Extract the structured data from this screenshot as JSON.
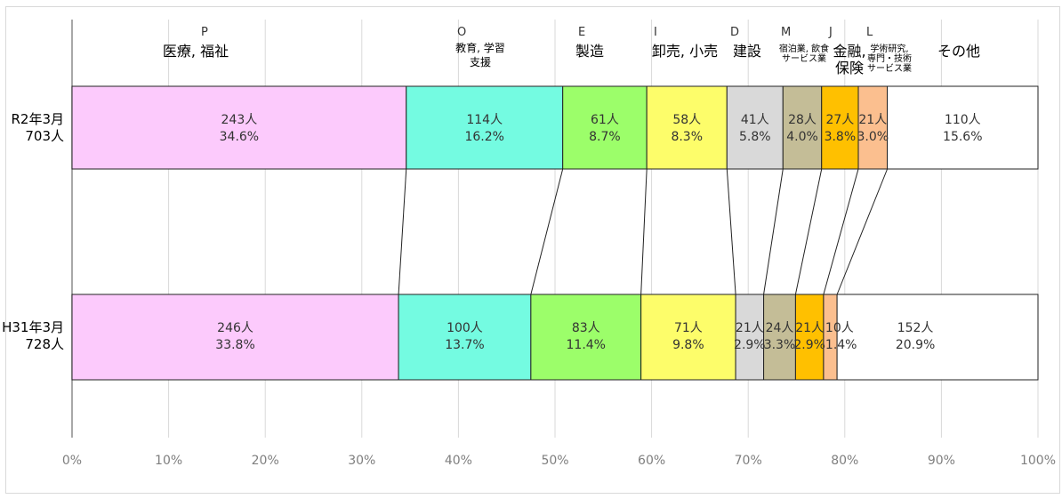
{
  "chart_data": {
    "type": "bar",
    "subtype": "stacked-100-percent-horizontal",
    "xlim": [
      0,
      100
    ],
    "x_tick_labels": [
      "0%",
      "10%",
      "20%",
      "30%",
      "40%",
      "50%",
      "60%",
      "70%",
      "80%",
      "90%",
      "100%"
    ],
    "grid": true,
    "categories": [
      {
        "line1": "R2年3月",
        "line2": "703人"
      },
      {
        "line1": "H31年3月",
        "line2": "728人"
      }
    ],
    "series": [
      {
        "code": "P",
        "name_lines": [
          "医療, 福祉"
        ],
        "color": "#fccafc",
        "rows": [
          {
            "count": "243人",
            "pct": "34.6%",
            "value": 34.6
          },
          {
            "count": "246人",
            "pct": "33.8%",
            "value": 33.8
          }
        ]
      },
      {
        "code": "O",
        "name_lines": [
          "教育, 学習",
          "支援"
        ],
        "color": "#74fbe1",
        "rows": [
          {
            "count": "114人",
            "pct": "16.2%",
            "value": 16.2
          },
          {
            "count": "100人",
            "pct": "13.7%",
            "value": 13.7
          }
        ]
      },
      {
        "code": "E",
        "name_lines": [
          "製造"
        ],
        "color": "#9cfe6a",
        "rows": [
          {
            "count": "61人",
            "pct": "8.7%",
            "value": 8.7
          },
          {
            "count": "83人",
            "pct": "11.4%",
            "value": 11.4
          }
        ]
      },
      {
        "code": "I",
        "name_lines": [
          "卸売, 小売"
        ],
        "color": "#fdfd6a",
        "rows": [
          {
            "count": "58人",
            "pct": "8.3%",
            "value": 8.3
          },
          {
            "count": "71人",
            "pct": "9.8%",
            "value": 9.8
          }
        ]
      },
      {
        "code": "D",
        "name_lines": [
          "建設"
        ],
        "color": "#d9d9d9",
        "rows": [
          {
            "count": "41人",
            "pct": "5.8%",
            "value": 5.8
          },
          {
            "count": "21人",
            "pct": "2.9%",
            "value": 2.9
          }
        ]
      },
      {
        "code": "M",
        "name_lines": [
          "宿泊業, 飲食",
          "サービス業"
        ],
        "color": "#c4bd97",
        "rows": [
          {
            "count": "28人",
            "pct": "4.0%",
            "value": 4.0
          },
          {
            "count": "24人",
            "pct": "3.3%",
            "value": 3.3
          }
        ]
      },
      {
        "code": "J",
        "name_lines": [
          "金融,",
          "保険"
        ],
        "color": "#ffc000",
        "rows": [
          {
            "count": "27人",
            "pct": "3.8%",
            "value": 3.8
          },
          {
            "count": "21人",
            "pct": "2.9%",
            "value": 2.9
          }
        ]
      },
      {
        "code": "L",
        "name_lines": [
          "学術研究,",
          "専門・技術",
          "サービス業"
        ],
        "color": "#fbbf8f",
        "rows": [
          {
            "count": "21人",
            "pct": "3.0%",
            "value": 3.0
          },
          {
            "count": "10人",
            "pct": "1.4%",
            "value": 1.4
          }
        ]
      },
      {
        "code": "",
        "name_lines": [
          "その他"
        ],
        "color": "#ffffff",
        "rows": [
          {
            "count": "110人",
            "pct": "15.6%",
            "value": 15.6
          },
          {
            "count": "152人",
            "pct": "20.9%",
            "value": 20.9
          }
        ]
      }
    ]
  }
}
